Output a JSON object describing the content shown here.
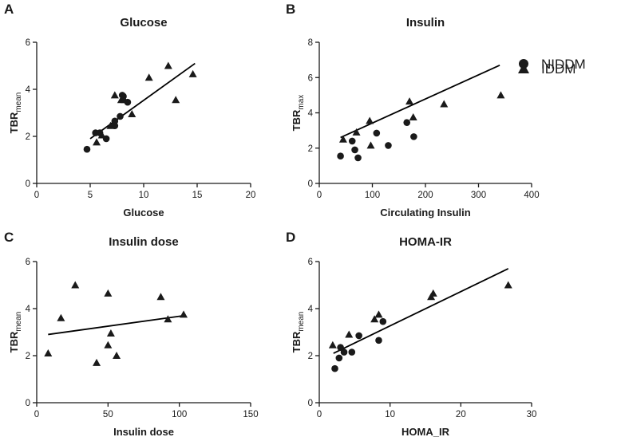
{
  "figure": {
    "legend": {
      "niddm_label": "NIDDM",
      "iddm_label": "IDDM",
      "niddm_marker": "circle",
      "iddm_marker": "triangle"
    },
    "marker_color": "#1a1a1a"
  },
  "chart_data": [
    {
      "panel": "A",
      "type": "scatter",
      "title": "Glucose",
      "xlabel": "Glucose",
      "ylabel_main": "TBR",
      "ylabel_sub": "mean",
      "xlim": [
        0,
        20
      ],
      "ylim": [
        0,
        6
      ],
      "xticks": [
        0,
        5,
        10,
        15,
        20
      ],
      "yticks": [
        0,
        2,
        4,
        6
      ],
      "series": [
        {
          "name": "NIDDM",
          "marker": "circle",
          "points": [
            [
              4.7,
              1.45
            ],
            [
              5.5,
              2.15
            ],
            [
              5.9,
              2.15
            ],
            [
              6.5,
              1.9
            ],
            [
              7.3,
              2.45
            ],
            [
              7.3,
              2.65
            ],
            [
              7.8,
              2.85
            ],
            [
              8.1,
              3.7
            ],
            [
              8.0,
              3.75
            ],
            [
              8.5,
              3.45
            ]
          ]
        },
        {
          "name": "IDDM",
          "marker": "triangle",
          "points": [
            [
              5.6,
              1.75
            ],
            [
              6.1,
              2.05
            ],
            [
              6.9,
              2.45
            ],
            [
              7.3,
              3.75
            ],
            [
              7.9,
              3.55
            ],
            [
              8.2,
              3.55
            ],
            [
              8.9,
              2.95
            ],
            [
              10.5,
              4.5
            ],
            [
              12.3,
              5.0
            ],
            [
              13.0,
              3.55
            ],
            [
              14.6,
              4.65
            ]
          ]
        }
      ],
      "fit_line": {
        "x": [
          5.0,
          14.8
        ],
        "y": [
          1.9,
          5.1
        ]
      }
    },
    {
      "panel": "B",
      "type": "scatter",
      "title": "Insulin",
      "xlabel": "Circulating Insulin",
      "ylabel_main": "TBR",
      "ylabel_sub": "max",
      "xlim": [
        0,
        400
      ],
      "ylim": [
        0,
        8
      ],
      "xticks": [
        0,
        100,
        200,
        300,
        400
      ],
      "yticks": [
        0,
        2,
        4,
        6,
        8
      ],
      "series": [
        {
          "name": "NIDDM",
          "marker": "circle",
          "points": [
            [
              40,
              1.55
            ],
            [
              62,
              2.4
            ],
            [
              67,
              1.9
            ],
            [
              73,
              1.45
            ],
            [
              108,
              2.85
            ],
            [
              130,
              2.15
            ],
            [
              165,
              3.45
            ],
            [
              178,
              2.65
            ]
          ]
        },
        {
          "name": "IDDM",
          "marker": "triangle",
          "points": [
            [
              45,
              2.5
            ],
            [
              70,
              2.9
            ],
            [
              95,
              3.55
            ],
            [
              97,
              2.15
            ],
            [
              170,
              4.65
            ],
            [
              177,
              3.75
            ],
            [
              235,
              4.5
            ],
            [
              342,
              5.0
            ]
          ]
        }
      ],
      "fit_line": {
        "x": [
          40,
          340
        ],
        "y": [
          2.6,
          6.7
        ]
      }
    },
    {
      "panel": "C",
      "type": "scatter",
      "title": "Insulin dose",
      "xlabel": "Insulin dose",
      "ylabel_main": "TBR",
      "ylabel_sub": "mean",
      "xlim": [
        0,
        150
      ],
      "ylim": [
        0,
        6
      ],
      "xticks": [
        0,
        50,
        100,
        150
      ],
      "yticks": [
        0,
        2,
        4,
        6
      ],
      "series": [
        {
          "name": "IDDM",
          "marker": "triangle",
          "points": [
            [
              8,
              2.1
            ],
            [
              17,
              3.6
            ],
            [
              27,
              5.0
            ],
            [
              42,
              1.7
            ],
            [
              50,
              4.65
            ],
            [
              50,
              2.45
            ],
            [
              52,
              2.95
            ],
            [
              56,
              2.0
            ],
            [
              87,
              4.5
            ],
            [
              92,
              3.55
            ],
            [
              103,
              3.75
            ]
          ]
        }
      ],
      "fit_line": {
        "x": [
          8,
          103
        ],
        "y": [
          2.9,
          3.7
        ]
      }
    },
    {
      "panel": "D",
      "type": "scatter",
      "title": "HOMA-IR",
      "xlabel": "HOMA_IR",
      "ylabel_main": "TBR",
      "ylabel_sub": "mean",
      "xlim": [
        0,
        30
      ],
      "ylim": [
        0,
        6
      ],
      "xticks": [
        0,
        10,
        20,
        30
      ],
      "yticks": [
        0,
        2,
        4,
        6
      ],
      "series": [
        {
          "name": "NIDDM",
          "marker": "circle",
          "points": [
            [
              2.2,
              1.45
            ],
            [
              2.8,
              1.9
            ],
            [
              3.0,
              2.35
            ],
            [
              3.5,
              2.15
            ],
            [
              4.6,
              2.15
            ],
            [
              5.6,
              2.85
            ],
            [
              8.4,
              2.65
            ],
            [
              9.0,
              3.45
            ]
          ]
        },
        {
          "name": "IDDM",
          "marker": "triangle",
          "points": [
            [
              1.9,
              2.45
            ],
            [
              4.2,
              2.9
            ],
            [
              7.8,
              3.55
            ],
            [
              8.4,
              3.75
            ],
            [
              15.8,
              4.5
            ],
            [
              16.1,
              4.65
            ],
            [
              26.7,
              5.0
            ]
          ]
        }
      ],
      "fit_line": {
        "x": [
          2.0,
          26.7
        ],
        "y": [
          2.1,
          5.7
        ]
      }
    }
  ]
}
